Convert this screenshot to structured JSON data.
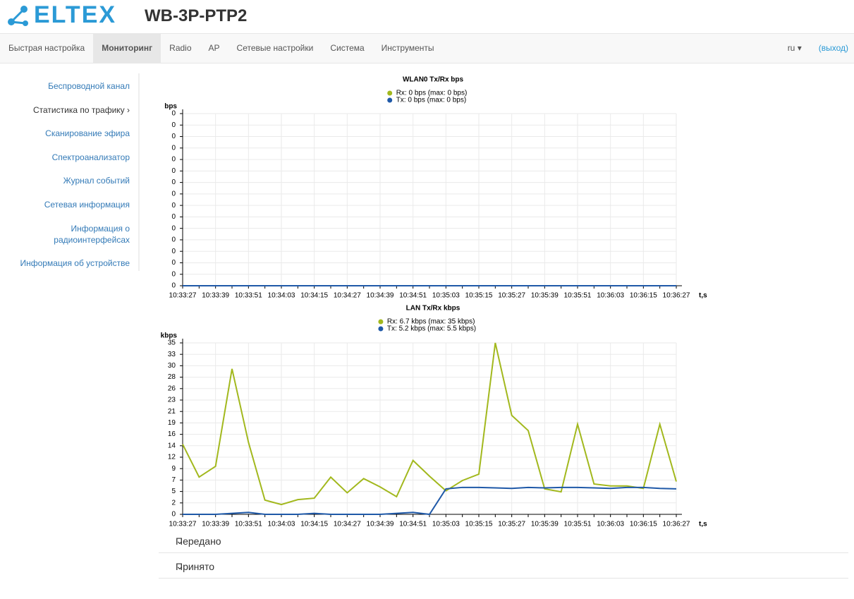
{
  "header": {
    "logo": "ELTEX",
    "title": "WB-3P-PTP2"
  },
  "nav": {
    "items": [
      "Быстрая настройка",
      "Мониторинг",
      "Radio",
      "AP",
      "Сетевые настройки",
      "Система",
      "Инструменты"
    ],
    "active": 1,
    "lang": "ru",
    "logout": "(выход)"
  },
  "sidebar": {
    "items": [
      "Беспроводной канал",
      "Статистика по трафику",
      "Сканирование эфира",
      "Спектроанализатор",
      "Журнал событий",
      "Сетевая информация",
      "Информация о радиоинтерфейсах",
      "Информация об устройстве"
    ]
  },
  "chart_data": [
    {
      "type": "line",
      "title": "WLAN0 Tx/Rx bps",
      "y_label": "bps",
      "x_label": "t,s",
      "categories": [
        "10:33:27",
        null,
        "10:33:39",
        null,
        "10:33:51",
        null,
        "10:34:03",
        null,
        "10:34:15",
        null,
        "10:34:27",
        null,
        "10:34:39",
        null,
        "10:34:51",
        null,
        "10:35:03",
        null,
        "10:35:15",
        null,
        "10:35:27",
        null,
        "10:35:39",
        null,
        "10:35:51",
        null,
        "10:36:03",
        null,
        "10:36:15",
        null,
        "10:36:27"
      ],
      "series": [
        {
          "name": "Rx: 0 bps (max: 0 bps)",
          "color": "#a2b81d",
          "values": [
            0,
            0,
            0,
            0,
            0,
            0,
            0,
            0,
            0,
            0,
            0,
            0,
            0,
            0,
            0,
            0,
            0,
            0,
            0,
            0,
            0,
            0,
            0,
            0,
            0,
            0,
            0,
            0,
            0,
            0,
            0
          ]
        },
        {
          "name": "Tx: 0 bps (max: 0 bps)",
          "color": "#1f59a8",
          "values": [
            0,
            0,
            0,
            0,
            0,
            0,
            0,
            0,
            0,
            0,
            0,
            0,
            0,
            0,
            0,
            0,
            0,
            0,
            0,
            0,
            0,
            0,
            0,
            0,
            0,
            0,
            0,
            0,
            0,
            0,
            0
          ]
        }
      ],
      "ylim": [
        0,
        0.3
      ],
      "yticks": [
        0,
        {
          "value": 0.02,
          "label": "0"
        },
        {
          "value": 0.04,
          "label": "0"
        },
        {
          "value": 0.06,
          "label": "0"
        },
        {
          "value": 0.08,
          "label": "0"
        },
        {
          "value": 0.1,
          "label": "0"
        },
        {
          "value": 0.12,
          "label": "0"
        },
        {
          "value": 0.14,
          "label": "0"
        },
        {
          "value": 0.16,
          "label": "0"
        },
        {
          "value": 0.18,
          "label": "0"
        },
        {
          "value": 0.2,
          "label": "0"
        },
        {
          "value": 0.22,
          "label": "0"
        },
        {
          "value": 0.24,
          "label": "0"
        },
        {
          "value": 0.26,
          "label": "0"
        },
        {
          "value": 0.28,
          "label": "0"
        },
        {
          "value": 0.3,
          "label": "0"
        }
      ],
      "grid": true
    },
    {
      "type": "line",
      "title": "LAN Tx/Rx kbps",
      "y_label": "kbps",
      "x_label": "t,s",
      "categories": [
        "10:33:27",
        null,
        "10:33:39",
        null,
        "10:33:51",
        null,
        "10:34:03",
        null,
        "10:34:15",
        null,
        "10:34:27",
        null,
        "10:34:39",
        null,
        "10:34:51",
        null,
        "10:35:03",
        null,
        "10:35:15",
        null,
        "10:35:27",
        null,
        "10:35:39",
        null,
        "10:35:51",
        null,
        "10:36:03",
        null,
        "10:36:15",
        null,
        "10:36:27"
      ],
      "series": [
        {
          "name": "Rx: 6.7 kbps (max: 35 kbps)",
          "color": "#a2b81d",
          "values": [
            14.3,
            7.6,
            9.8,
            29.7,
            14.7,
            2.9,
            2.0,
            3.0,
            3.3,
            7.6,
            4.4,
            7.3,
            5.6,
            3.6,
            11.0,
            7.8,
            4.8,
            6.9,
            8.2,
            35,
            20.2,
            17.1,
            5.2,
            4.6,
            18.4,
            6.2,
            5.8,
            5.8,
            5.3,
            18.4,
            6.7
          ]
        },
        {
          "name": "Tx: 5.2 kbps (max: 5.5 kbps)",
          "color": "#1f59a8",
          "values": [
            0,
            0,
            0,
            0.2,
            0.4,
            0,
            0,
            0,
            0.2,
            0,
            0,
            0,
            0,
            0.2,
            0.4,
            0,
            5.2,
            5.5,
            5.5,
            5.4,
            5.3,
            5.5,
            5.4,
            5.5,
            5.5,
            5.4,
            5.3,
            5.5,
            5.5,
            5.3,
            5.2
          ]
        }
      ],
      "ylim": [
        0,
        35
      ],
      "yticks": [
        0,
        {
          "value": 2.333,
          "label": "2"
        },
        {
          "value": 4.667,
          "label": "5"
        },
        7,
        {
          "value": 9.333,
          "label": "9"
        },
        {
          "value": 11.667,
          "label": "12"
        },
        14,
        {
          "value": 16.333,
          "label": "16"
        },
        {
          "value": 18.667,
          "label": "19"
        },
        21,
        {
          "value": 23.333,
          "label": "23"
        },
        {
          "value": 25.667,
          "label": "26"
        },
        28,
        {
          "value": 30.333,
          "label": "30"
        },
        {
          "value": 32.667,
          "label": "33"
        },
        35
      ],
      "grid": true
    }
  ],
  "sections": [
    "Передано",
    "Принято"
  ]
}
